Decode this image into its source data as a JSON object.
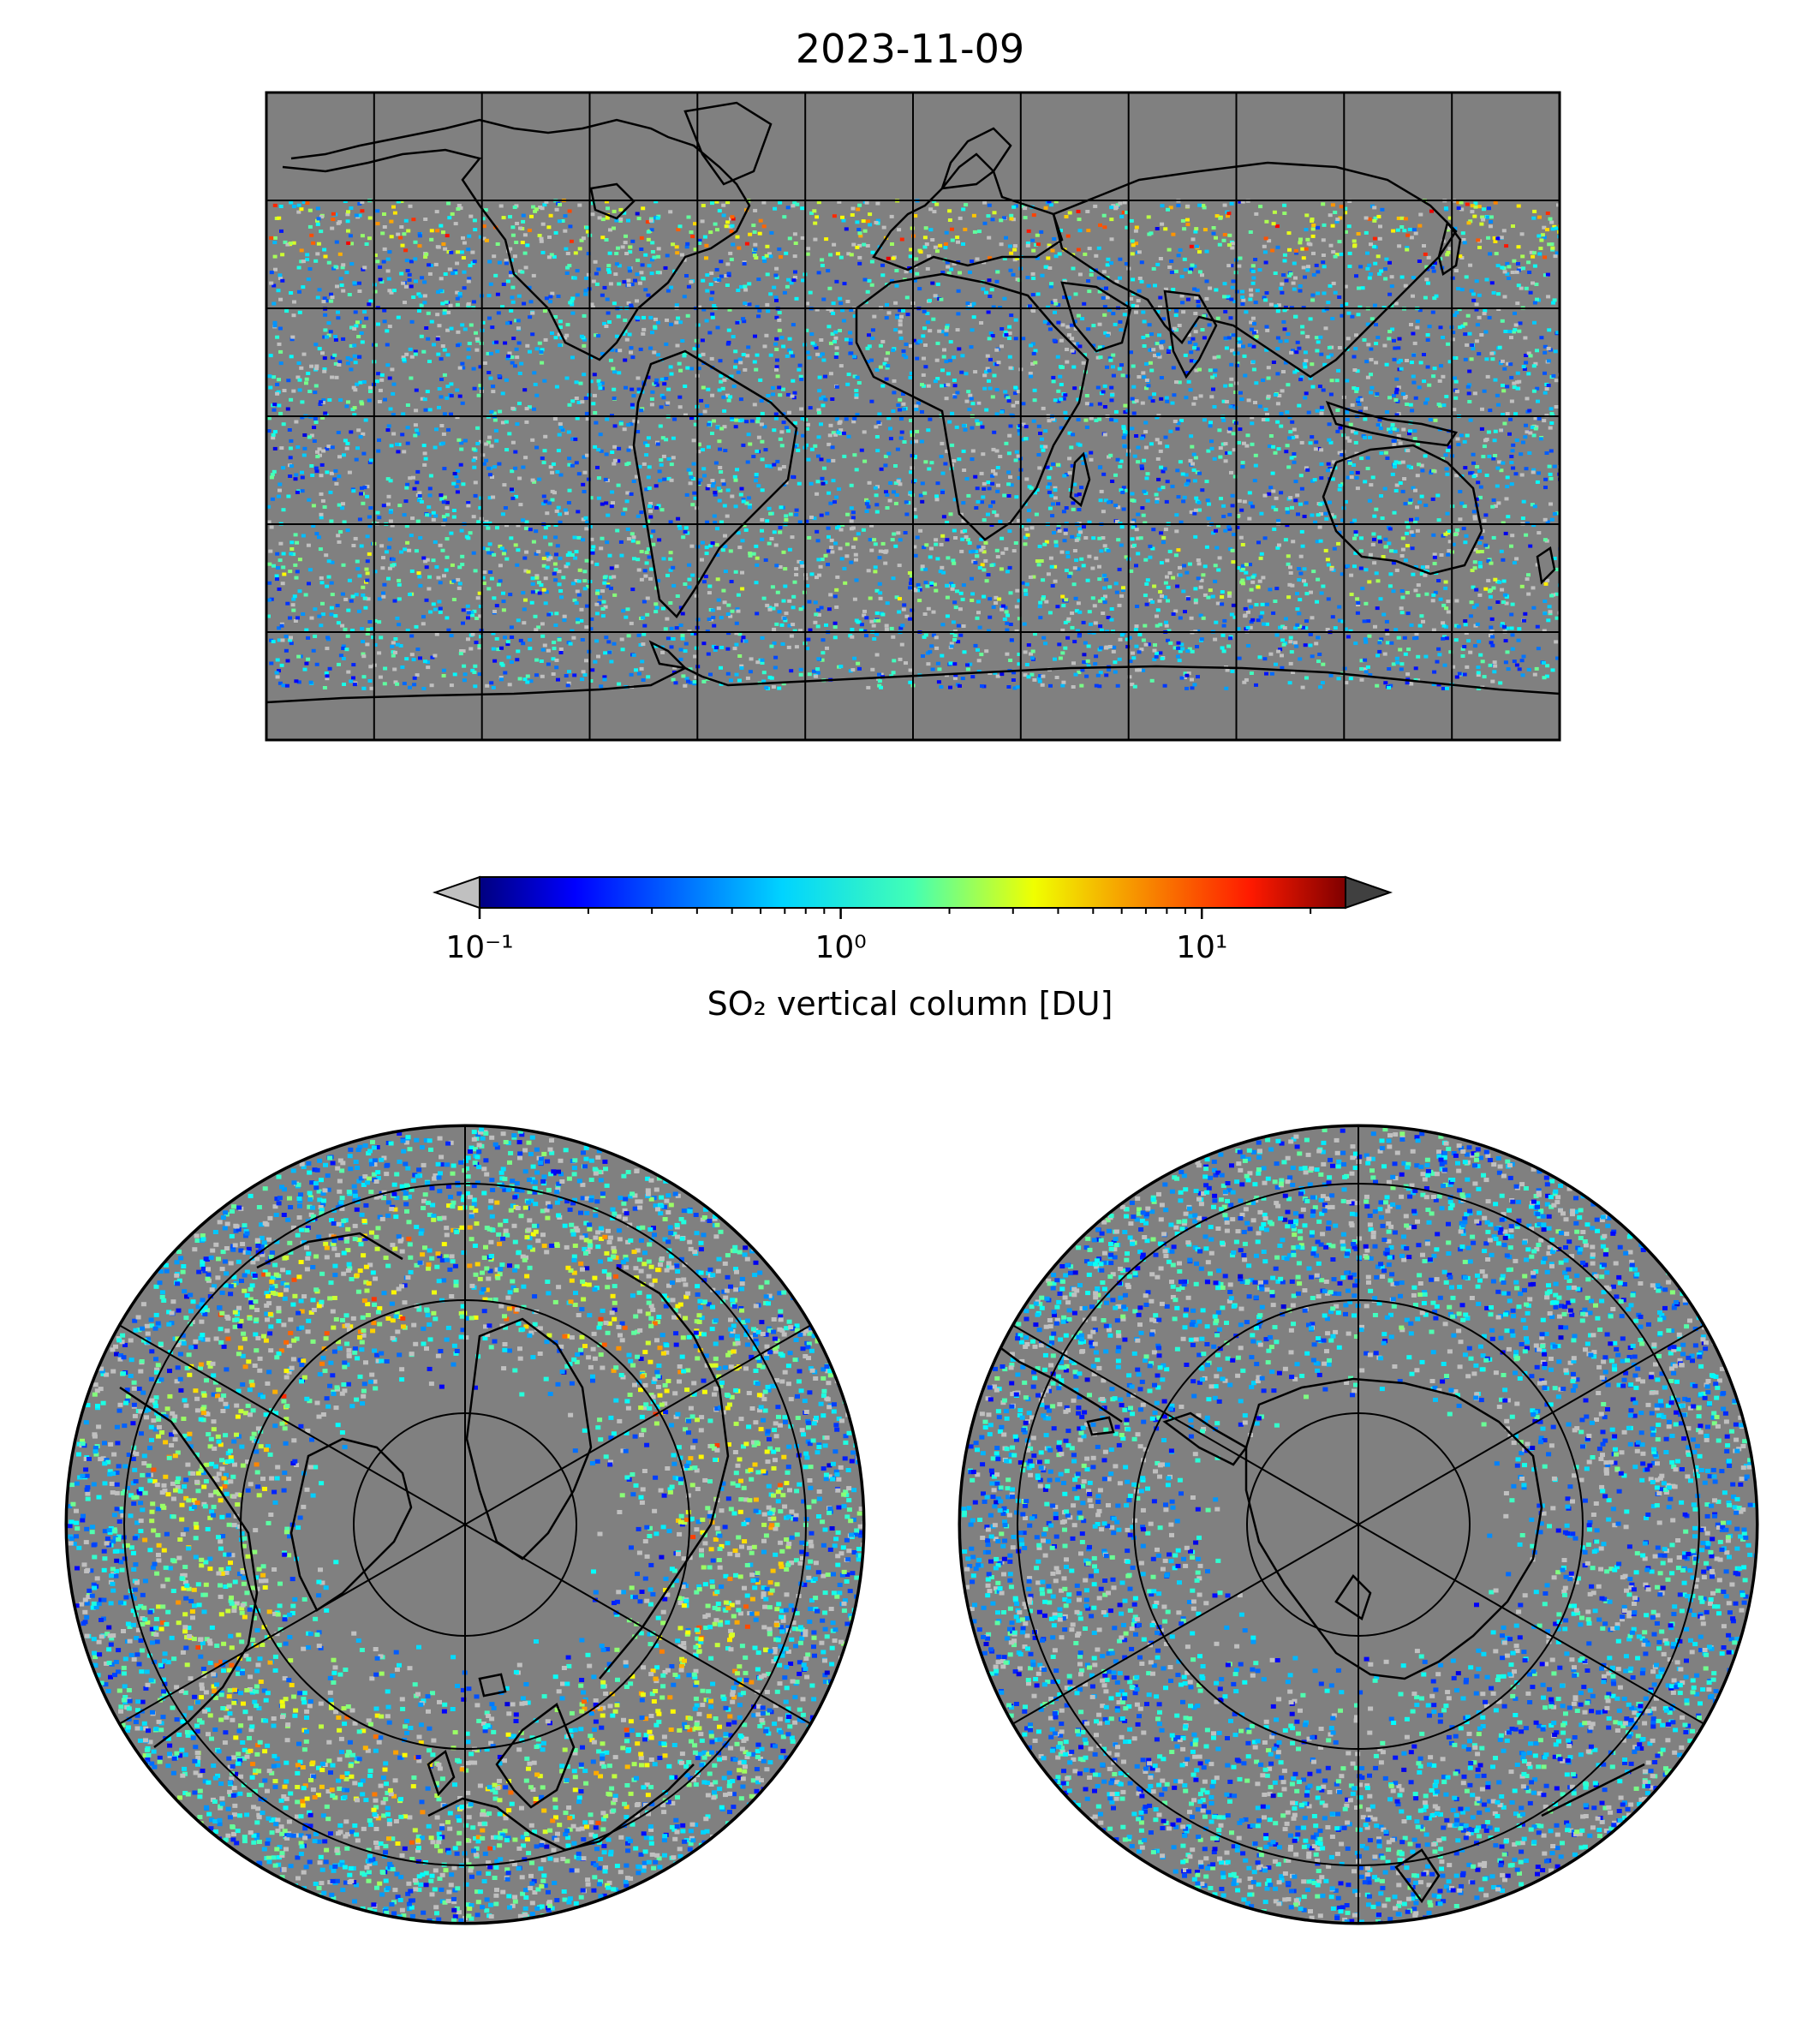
{
  "title": "2023-11-09",
  "colorbar": {
    "label": "SO₂ vertical column [DU]",
    "scale": "log",
    "range": [
      0.1,
      25
    ],
    "ticks": [
      {
        "value": 0.1,
        "label": "10⁻¹"
      },
      {
        "value": 1,
        "label": "10⁰"
      },
      {
        "value": 10,
        "label": "10¹"
      }
    ],
    "colormap": "jet",
    "under_color": "#c0c0c0",
    "over_color": "#404040"
  },
  "colors": {
    "no_data": "#808080",
    "coastline": "#000000",
    "gridline": "#000000",
    "low_values": "#c0c0c0"
  },
  "panels": {
    "global_map": {
      "projection": "plate-carree",
      "grid": true
    },
    "north_polar_map": {
      "projection": "north-polar-stereographic",
      "grid": true
    },
    "south_polar_map": {
      "projection": "south-polar-stereographic",
      "grid": true
    }
  }
}
